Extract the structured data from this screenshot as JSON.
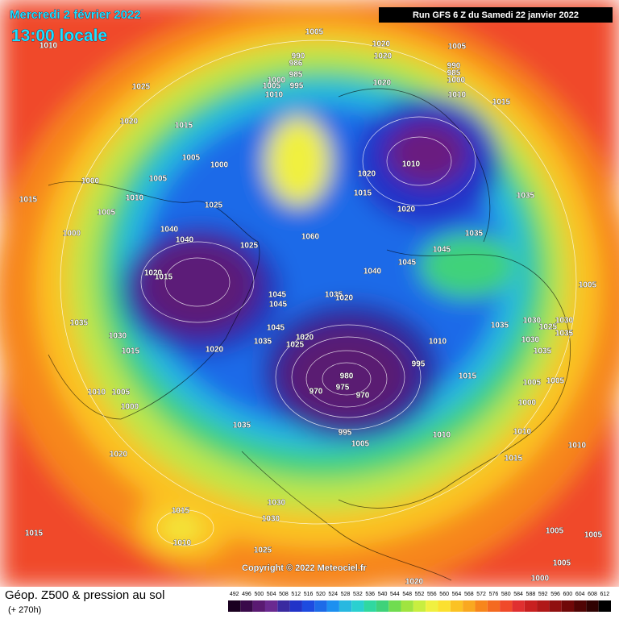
{
  "header": {
    "date": "Mercredi 2 février 2022",
    "time": "13:00 locale",
    "run": "Run GFS 6 Z du Samedi 22 janvier 2022"
  },
  "footer": {
    "title": "Géop. Z500 & pression au sol",
    "lead": "(+ 270h)",
    "copyright": "Copyright © 2022 Meteociel.fr"
  },
  "colorbar": {
    "ticks": [
      492,
      496,
      500,
      504,
      508,
      512,
      516,
      520,
      524,
      528,
      532,
      536,
      540,
      544,
      548,
      552,
      556,
      560,
      564,
      568,
      572,
      576,
      580,
      584,
      588,
      592,
      596,
      600,
      604,
      608,
      612
    ]
  },
  "isobar_labels": [
    1010,
    1005,
    990,
    986,
    985,
    1000,
    1005,
    995,
    1010,
    1020,
    1020,
    1005,
    990,
    985,
    1000,
    1020,
    1010,
    1015,
    1025,
    1020,
    1015,
    1005,
    1000,
    1005,
    1000,
    1010,
    1015,
    1005,
    1025,
    1000,
    1040,
    1040,
    1010,
    1020,
    1015,
    1020,
    1035,
    1035,
    1060,
    1025,
    1045,
    1045,
    1040,
    1020,
    1015,
    1045,
    1045,
    1035,
    1020,
    1005,
    1035,
    1030,
    1045,
    1035,
    1020,
    1025,
    1020,
    1015,
    1010,
    995,
    980,
    975,
    970,
    970,
    1015,
    1010,
    1005,
    1000,
    1035,
    1010,
    995,
    1005,
    1020,
    1015,
    1010,
    1015,
    1030,
    1030,
    1010,
    1015,
    1025,
    1005,
    1005,
    1005,
    1000,
    1020,
    1035,
    1000,
    1005,
    1005,
    1010,
    1030,
    1030,
    1025,
    1035,
    1030,
    1035
  ]
}
